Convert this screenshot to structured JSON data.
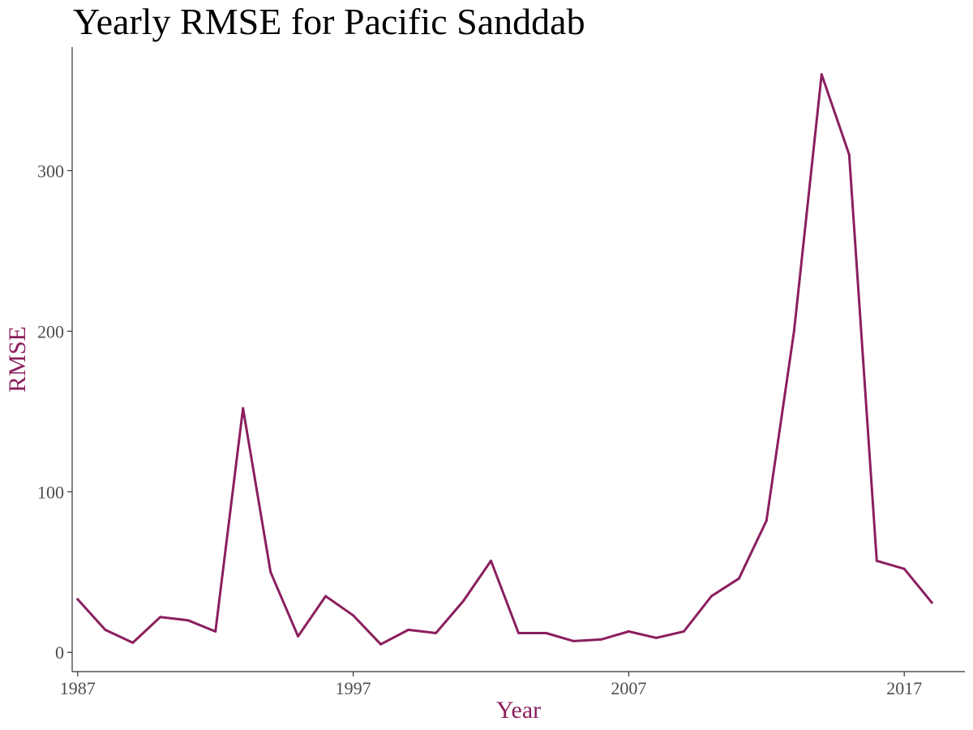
{
  "chart_data": {
    "type": "line",
    "title": "Yearly RMSE for Pacific Sanddab",
    "xlabel": "Year",
    "ylabel": "RMSE",
    "x": [
      1987,
      1988,
      1989,
      1990,
      1991,
      1992,
      1993,
      1994,
      1995,
      1996,
      1997,
      1998,
      1999,
      2000,
      2001,
      2002,
      2003,
      2004,
      2005,
      2006,
      2007,
      2008,
      2009,
      2010,
      2011,
      2012,
      2013,
      2014,
      2015,
      2016,
      2017,
      2018
    ],
    "series": [
      {
        "values": [
          33,
          14,
          6,
          22,
          20,
          13,
          152,
          50,
          10,
          35,
          23,
          5,
          14,
          12,
          32,
          57,
          12,
          12,
          7,
          8,
          13,
          9,
          13,
          35,
          46,
          82,
          200,
          360,
          310,
          57,
          52,
          31
        ]
      }
    ],
    "xticks": [
      1987,
      1997,
      2007,
      2017
    ],
    "yticks": [
      0,
      100,
      200,
      300
    ],
    "xlim": [
      1986.8,
      2019.2
    ],
    "ylim": [
      -12,
      377
    ],
    "grid": false,
    "colors": {
      "line": "#8b1f5e",
      "axis_title": "#8b1f5e",
      "tick_label": "#4d4d4d",
      "axis": "#333333"
    }
  }
}
